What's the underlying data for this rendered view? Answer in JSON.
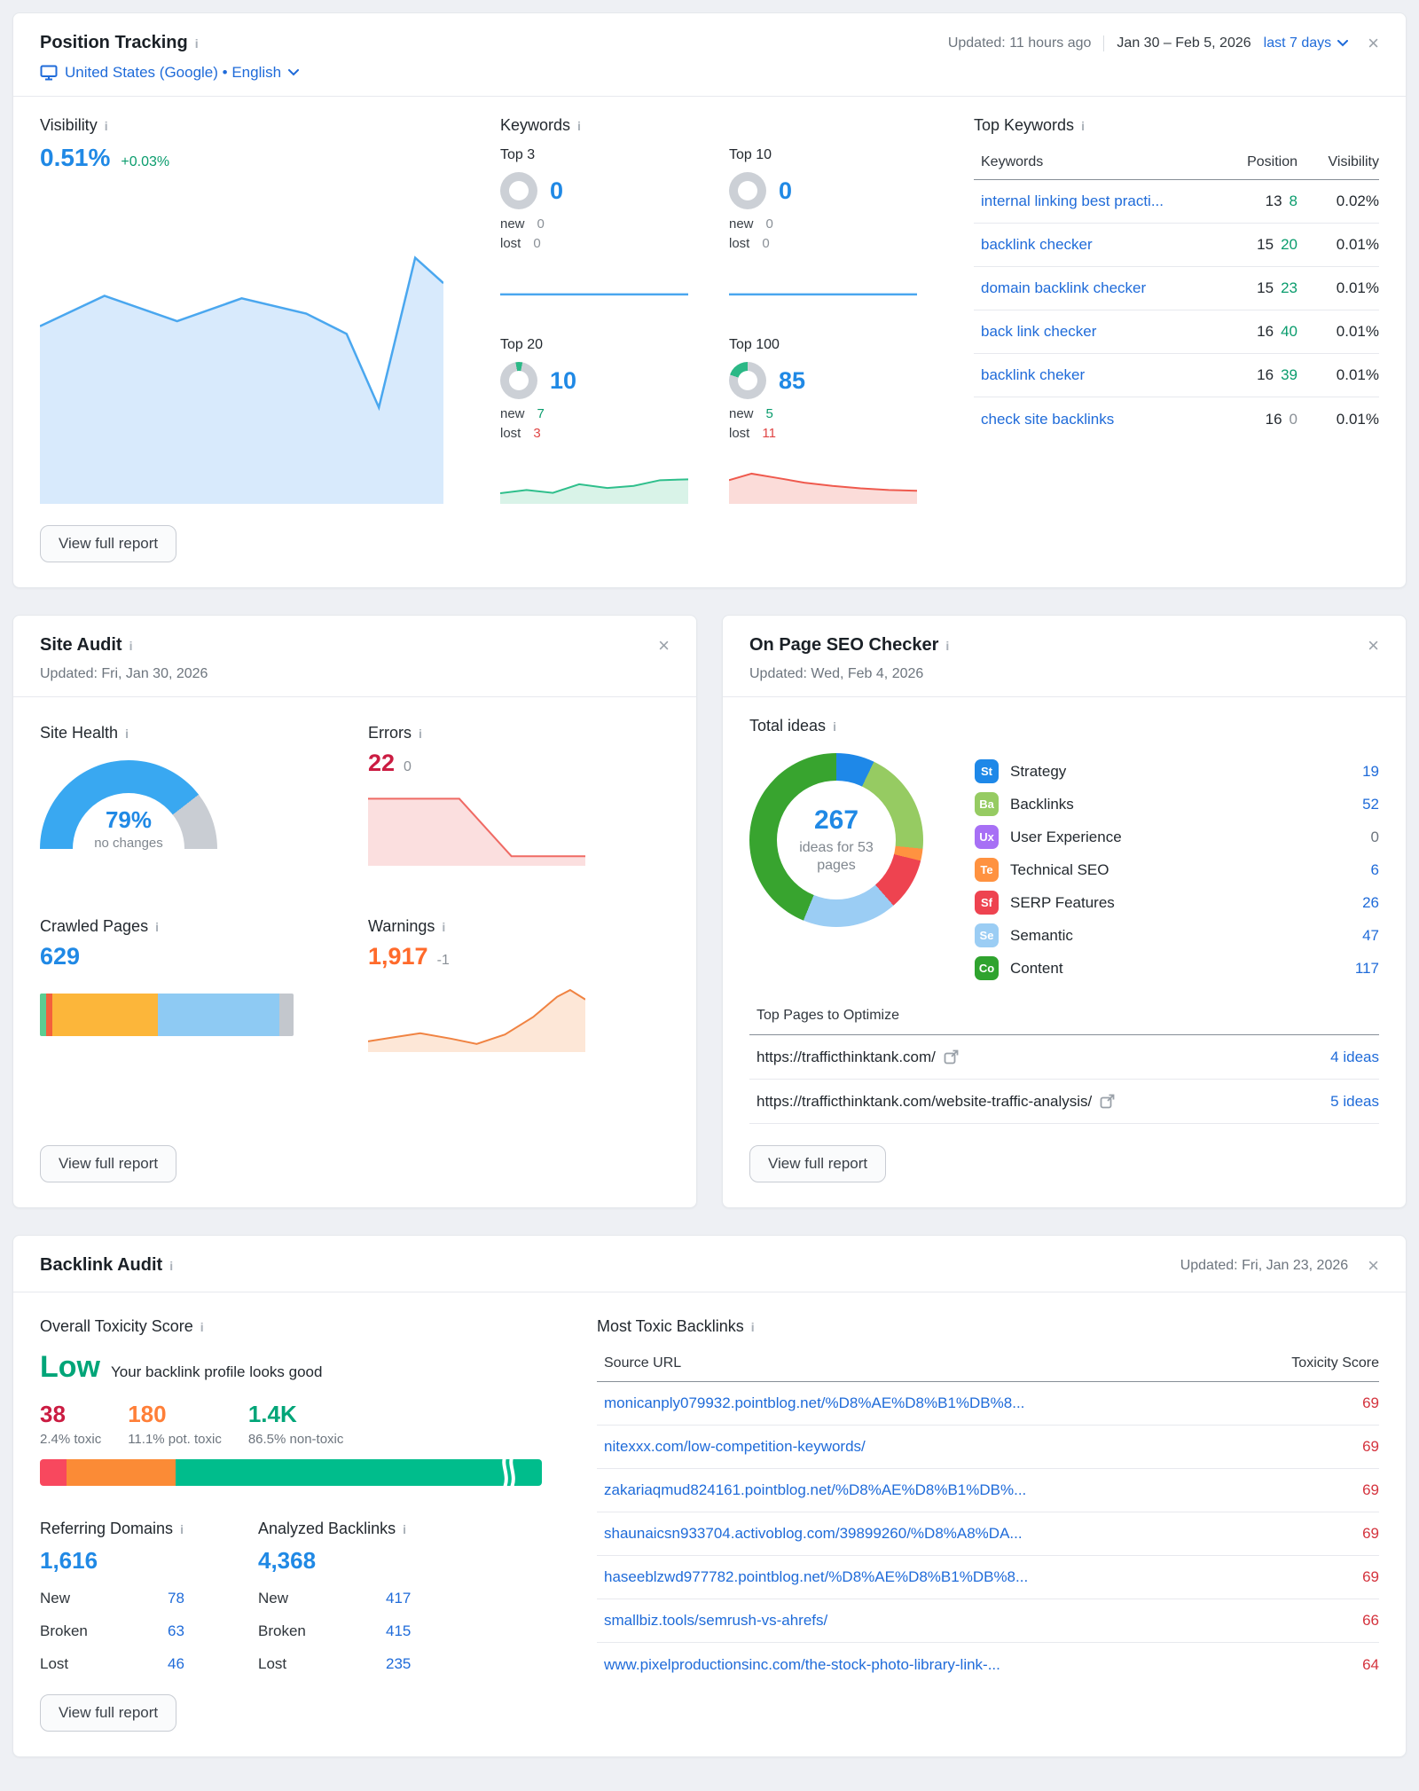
{
  "icons": {
    "info": "i",
    "close": "×"
  },
  "position_tracking": {
    "title": "Position Tracking",
    "updated": "Updated: 11 hours ago",
    "date_range": "Jan 30 – Feb 5, 2026",
    "range_selector": "last 7 days",
    "location": "United States (Google) • English",
    "view_report": "View full report",
    "visibility": {
      "label": "Visibility",
      "value": "0.51%",
      "delta": "+0.03%",
      "spark": [
        [
          0,
          30
        ],
        [
          16,
          18
        ],
        [
          34,
          28
        ],
        [
          50,
          19
        ],
        [
          66,
          25
        ],
        [
          76,
          33
        ],
        [
          84,
          62
        ],
        [
          93,
          3
        ],
        [
          100,
          13
        ]
      ]
    },
    "keywords": {
      "label": "Keywords",
      "buckets": [
        {
          "label": "Top 3",
          "value": "0",
          "new_label": "new",
          "lost_label": "lost",
          "new": "0",
          "lost": "0",
          "ring_pct": 0,
          "ring_from": 0,
          "spark": [
            [
              0,
              52
            ],
            [
              100,
              52
            ]
          ]
        },
        {
          "label": "Top 10",
          "value": "0",
          "new_label": "new",
          "lost_label": "lost",
          "new": "0",
          "lost": "0",
          "ring_pct": 0,
          "ring_from": 0,
          "spark": [
            [
              0,
              52
            ],
            [
              100,
              52
            ]
          ]
        },
        {
          "label": "Top 20",
          "value": "10",
          "new_label": "new",
          "lost_label": "lost",
          "new": "7",
          "lost": "3",
          "ring_pct": 6,
          "ring_from": 350,
          "spark": [
            [
              0,
              74
            ],
            [
              14,
              66
            ],
            [
              28,
              73
            ],
            [
              42,
              52
            ],
            [
              57,
              61
            ],
            [
              71,
              56
            ],
            [
              85,
              42
            ],
            [
              100,
              40
            ]
          ]
        },
        {
          "label": "Top 100",
          "value": "85",
          "new_label": "new",
          "lost_label": "lost",
          "new": "5",
          "lost": "11",
          "ring_pct": 20,
          "ring_from": 288,
          "spark": [
            [
              0,
              42
            ],
            [
              12,
              26
            ],
            [
              25,
              36
            ],
            [
              40,
              48
            ],
            [
              55,
              56
            ],
            [
              70,
              62
            ],
            [
              85,
              66
            ],
            [
              100,
              68
            ]
          ]
        }
      ]
    },
    "top_keywords": {
      "label": "Top Keywords",
      "columns": {
        "keyword": "Keywords",
        "position": "Position",
        "visibility": "Visibility"
      },
      "rows": [
        {
          "keyword": "internal linking best practi...",
          "position": "13",
          "change": "8",
          "visibility": "0.02%"
        },
        {
          "keyword": "backlink checker",
          "position": "15",
          "change": "20",
          "visibility": "0.01%"
        },
        {
          "keyword": "domain backlink checker",
          "position": "15",
          "change": "23",
          "visibility": "0.01%"
        },
        {
          "keyword": "back link checker",
          "position": "16",
          "change": "40",
          "visibility": "0.01%"
        },
        {
          "keyword": "backlink cheker",
          "position": "16",
          "change": "39",
          "visibility": "0.01%"
        },
        {
          "keyword": "check site backlinks",
          "position": "16",
          "change": "0",
          "visibility": "0.01%"
        }
      ]
    }
  },
  "site_audit": {
    "title": "Site Audit",
    "updated": "Updated: Fri, Jan 30, 2026",
    "view_report": "View full report",
    "site_health": {
      "label": "Site Health",
      "value": "79%",
      "caption": "no changes",
      "pct": 79
    },
    "errors": {
      "label": "Errors",
      "value": "22",
      "delta": "0",
      "spark": [
        [
          0,
          16
        ],
        [
          42,
          16
        ],
        [
          66,
          88
        ],
        [
          100,
          88
        ]
      ]
    },
    "crawled_pages": {
      "label": "Crawled Pages",
      "value": "629",
      "segments": [
        {
          "color": "#5bcd92",
          "pct": 2.5
        },
        {
          "color": "#f4603c",
          "pct": 2.5
        },
        {
          "color": "#fcb63a",
          "pct": 41.5
        },
        {
          "color": "#8ecaf3",
          "pct": 48
        },
        {
          "color": "#c3c7cd",
          "pct": 5.5
        }
      ]
    },
    "warnings": {
      "label": "Warnings",
      "value": "1,917",
      "delta": "-1",
      "spark": [
        [
          0,
          84
        ],
        [
          12,
          78
        ],
        [
          24,
          72
        ],
        [
          38,
          80
        ],
        [
          50,
          88
        ],
        [
          63,
          74
        ],
        [
          76,
          48
        ],
        [
          87,
          18
        ],
        [
          93,
          8
        ],
        [
          100,
          22
        ]
      ]
    }
  },
  "on_page_seo": {
    "title": "On Page SEO Checker",
    "updated": "Updated: Wed, Feb 4, 2026",
    "view_report": "View full report",
    "total_ideas_label": "Total ideas",
    "donut": {
      "total": "267",
      "caption": "ideas for 53 pages",
      "segments": [
        {
          "color": "#1e88e8",
          "value": 19
        },
        {
          "color": "#96cb62",
          "value": 52
        },
        {
          "color": "#ff9240",
          "value": 6
        },
        {
          "color": "#ee4350",
          "value": 26
        },
        {
          "color": "#9bcdf4",
          "value": 47
        },
        {
          "color": "#38a42f",
          "value": 117
        }
      ]
    },
    "categories": [
      {
        "abbr": "St",
        "color": "#1e88e8",
        "label": "Strategy",
        "count": "19"
      },
      {
        "abbr": "Ba",
        "color": "#96cb62",
        "label": "Backlinks",
        "count": "52"
      },
      {
        "abbr": "Ux",
        "color": "#a770f5",
        "label": "User Experience",
        "count": "0"
      },
      {
        "abbr": "Te",
        "color": "#ff9240",
        "label": "Technical SEO",
        "count": "6"
      },
      {
        "abbr": "Sf",
        "color": "#ee4350",
        "label": "SERP Features",
        "count": "26"
      },
      {
        "abbr": "Se",
        "color": "#9bcdf4",
        "label": "Semantic",
        "count": "47"
      },
      {
        "abbr": "Co",
        "color": "#2fa32e",
        "label": "Content",
        "count": "117"
      }
    ],
    "top_pages": {
      "label": "Top Pages to Optimize",
      "rows": [
        {
          "url": "https://trafficthinktank.com/",
          "ideas": "4 ideas"
        },
        {
          "url": "https://trafficthinktank.com/website-traffic-analysis/",
          "ideas": "5 ideas"
        }
      ]
    }
  },
  "backlink_audit": {
    "title": "Backlink Audit",
    "updated": "Updated: Fri, Jan 23, 2026",
    "view_report": "View full report",
    "toxicity": {
      "label": "Overall Toxicity Score",
      "level": "Low",
      "message": "Your backlink profile looks good",
      "metrics": [
        {
          "value": "38",
          "caption": "2.4% toxic",
          "color": "#cb1c42"
        },
        {
          "value": "180",
          "caption": "11.1% pot. toxic",
          "color": "#ff7f38"
        },
        {
          "value": "1.4K",
          "caption": "86.5% non-toxic",
          "color": "#00a578"
        }
      ],
      "bar": [
        {
          "color": "#f8485e",
          "pct": 5.3
        },
        {
          "color": "#fb8b36",
          "pct": 21.7
        },
        {
          "color": "#00bd8c",
          "pct": 73
        }
      ]
    },
    "referring_domains": {
      "label": "Referring Domains",
      "value": "1,616",
      "rows": [
        {
          "label": "New",
          "value": "78"
        },
        {
          "label": "Broken",
          "value": "63"
        },
        {
          "label": "Lost",
          "value": "46"
        }
      ]
    },
    "analyzed_backlinks": {
      "label": "Analyzed Backlinks",
      "value": "4,368",
      "rows": [
        {
          "label": "New",
          "value": "417"
        },
        {
          "label": "Broken",
          "value": "415"
        },
        {
          "label": "Lost",
          "value": "235"
        }
      ]
    },
    "toxic_table": {
      "label": "Most Toxic Backlinks",
      "columns": {
        "url": "Source URL",
        "score": "Toxicity Score"
      },
      "rows": [
        {
          "url": "monicanply079932.pointblog.net/%D8%AE%D8%B1%DB%8...",
          "score": "69"
        },
        {
          "url": "nitexxx.com/low-competition-keywords/",
          "score": "69"
        },
        {
          "url": "zakariaqmud824161.pointblog.net/%D8%AE%D8%B1%DB%...",
          "score": "69"
        },
        {
          "url": "shaunaicsn933704.activoblog.com/39899260/%D8%A8%DA...",
          "score": "69"
        },
        {
          "url": "haseeblzwd977782.pointblog.net/%D8%AE%D8%B1%DB%8...",
          "score": "69"
        },
        {
          "url": "smallbiz.tools/semrush-vs-ahrefs/",
          "score": "66"
        },
        {
          "url": "www.pixelproductionsinc.com/the-stock-photo-library-link-...",
          "score": "64"
        }
      ]
    }
  }
}
